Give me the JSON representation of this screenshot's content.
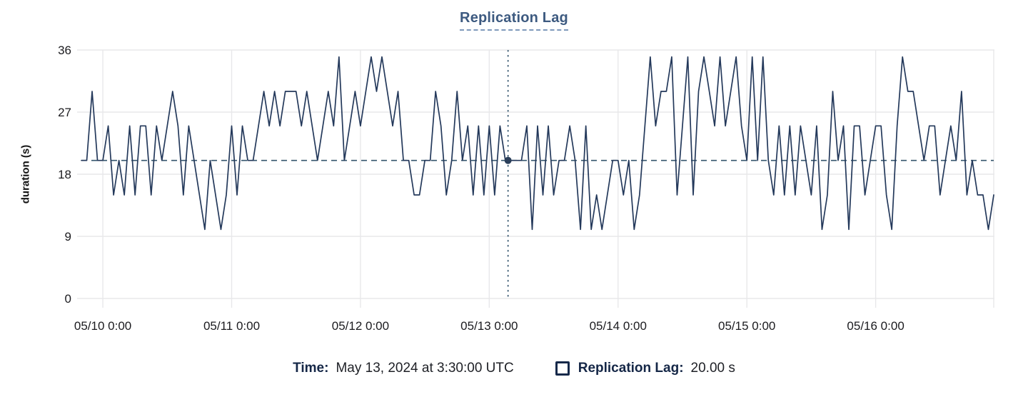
{
  "chart_data": {
    "type": "line",
    "title": "Replication Lag",
    "ylabel": "duration (s)",
    "ylim": [
      0,
      36
    ],
    "y_ticks": [
      0,
      9,
      18,
      27,
      36
    ],
    "grid": true,
    "legend_position": "bottom",
    "series_name": "Replication Lag",
    "x_start": "05/09 20:00",
    "interval_hours": 1,
    "x_ticks": [
      {
        "hour": 4,
        "label": "05/10 0:00"
      },
      {
        "hour": 28,
        "label": "05/11 0:00"
      },
      {
        "hour": 52,
        "label": "05/12 0:00"
      },
      {
        "hour": 76,
        "label": "05/13 0:00"
      },
      {
        "hour": 100,
        "label": "05/14 0:00"
      },
      {
        "hour": 124,
        "label": "05/15 0:00"
      },
      {
        "hour": 148,
        "label": "05/16 0:00"
      }
    ],
    "values": [
      20,
      20,
      30,
      20,
      20,
      25,
      15,
      20,
      15,
      25,
      15,
      25,
      25,
      15,
      25,
      20,
      25,
      30,
      25,
      15,
      25,
      20,
      15,
      10,
      20,
      15,
      10,
      15,
      25,
      15,
      25,
      20,
      20,
      25,
      30,
      25,
      30,
      25,
      30,
      30,
      30,
      25,
      30,
      25,
      20,
      25,
      30,
      25,
      35,
      20,
      25,
      30,
      25,
      30,
      35,
      30,
      35,
      30,
      25,
      30,
      20,
      20,
      15,
      15,
      20,
      20,
      30,
      25,
      15,
      20,
      30,
      20,
      25,
      15,
      25,
      15,
      25,
      15,
      25,
      20,
      20,
      20,
      20,
      25,
      10,
      25,
      15,
      25,
      15,
      20,
      20,
      25,
      20,
      10,
      25,
      10,
      15,
      10,
      15,
      20,
      20,
      15,
      20,
      10,
      15,
      25,
      35,
      25,
      30,
      30,
      35,
      15,
      25,
      35,
      15,
      30,
      35,
      30,
      25,
      35,
      25,
      30,
      35,
      25,
      20,
      35,
      20,
      35,
      20,
      15,
      25,
      15,
      25,
      15,
      25,
      20,
      15,
      25,
      10,
      15,
      30,
      20,
      25,
      10,
      25,
      25,
      15,
      20,
      25,
      25,
      15,
      10,
      25,
      35,
      30,
      30,
      25,
      20,
      25,
      25,
      15,
      20,
      25,
      20,
      30,
      15,
      20,
      15,
      15,
      10,
      15
    ],
    "crosshair": {
      "hour": 79.5,
      "value": 20,
      "time_label": "May 13, 2024 at 3:30:00 UTC",
      "value_label": "20.00 s"
    },
    "colors": {
      "line": "#24395b",
      "crosshair": "#35566e",
      "dot": "#2b3f5a",
      "grid": "#e8e8ea",
      "tick": "#d2d2d2",
      "axis_text": "#1b1b1f",
      "title": "#3d5a80"
    }
  },
  "footer": {
    "time_label": "Time:",
    "time_value": "May 13, 2024 at 3:30:00 UTC",
    "series_label": "Replication Lag:",
    "series_value": "20.00 s"
  }
}
